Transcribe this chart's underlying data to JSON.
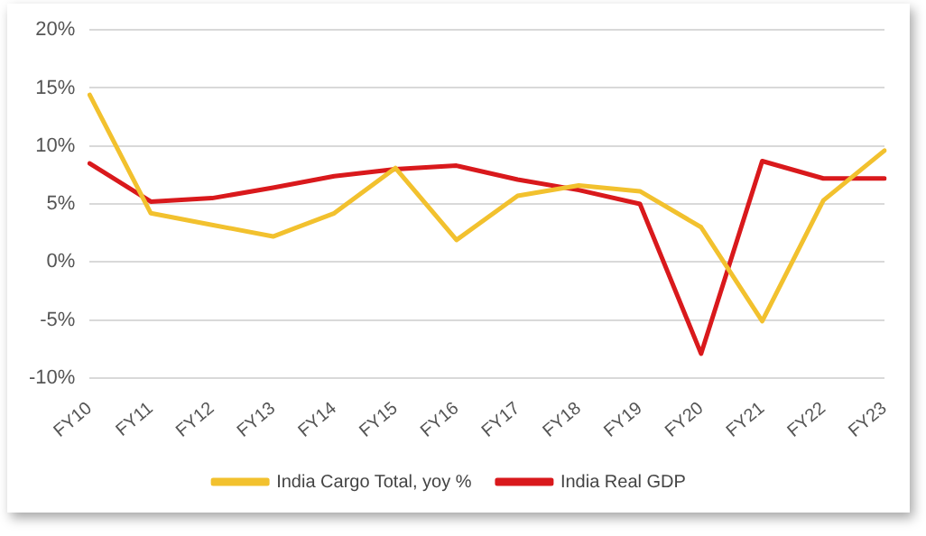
{
  "chart_data": {
    "type": "line",
    "categories": [
      "FY10",
      "FY11",
      "FY12",
      "FY13",
      "FY14",
      "FY15",
      "FY16",
      "FY17",
      "FY18",
      "FY19",
      "FY20",
      "FY21",
      "FY22",
      "FY23"
    ],
    "series": [
      {
        "name": "India Cargo Total, yoy %",
        "color": "#f2c12e",
        "values": [
          14.4,
          4.2,
          3.2,
          2.2,
          4.2,
          8.1,
          1.9,
          5.7,
          6.6,
          6.1,
          3.0,
          -5.1,
          5.3,
          9.6
        ]
      },
      {
        "name": "India Real GDP",
        "color": "#d9191c",
        "values": [
          8.5,
          5.2,
          5.5,
          6.4,
          7.4,
          8.0,
          8.3,
          7.1,
          6.2,
          5.0,
          -7.9,
          8.7,
          7.2,
          7.2
        ]
      }
    ],
    "ylim": [
      -10,
      20
    ],
    "yticks": [
      {
        "value": -10,
        "label": "-10%"
      },
      {
        "value": -5,
        "label": "-5%"
      },
      {
        "value": 0,
        "label": "0%"
      },
      {
        "value": 5,
        "label": "5%"
      },
      {
        "value": 10,
        "label": "10%"
      },
      {
        "value": 15,
        "label": "15%"
      },
      {
        "value": 20,
        "label": "20%"
      }
    ],
    "grid": "y",
    "legend": "bottom",
    "marker": "none",
    "line_style": "solid"
  }
}
